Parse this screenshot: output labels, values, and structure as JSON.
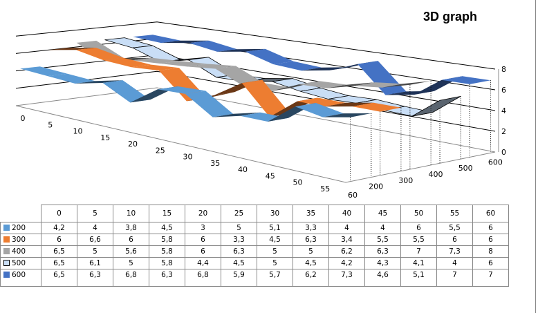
{
  "chart_data": {
    "type": "line",
    "subtype": "3d-ribbon",
    "title": "3D graph",
    "categories": [
      "0",
      "5",
      "10",
      "15",
      "20",
      "25",
      "30",
      "35",
      "40",
      "45",
      "50",
      "55",
      "60"
    ],
    "series": [
      {
        "name": "200",
        "color": "#5b9bd5",
        "values": [
          4.2,
          4,
          3.8,
          4.5,
          3,
          5,
          5.1,
          3.3,
          4,
          4,
          6,
          5.5,
          6
        ]
      },
      {
        "name": "300",
        "color": "#ed7d31",
        "values": [
          6,
          6.6,
          6,
          5.8,
          6,
          3.3,
          4.5,
          6.3,
          3.4,
          5.5,
          5.5,
          6,
          6
        ]
      },
      {
        "name": "400",
        "color": "#a5a5a5",
        "values": [
          6.5,
          5,
          5.6,
          5.8,
          6,
          6.3,
          5,
          5,
          6.2,
          6.3,
          7,
          7.3,
          8
        ]
      },
      {
        "name": "500",
        "color": "#c9def6",
        "values": [
          6.5,
          6.1,
          5,
          5.8,
          4.4,
          4.5,
          5,
          4.5,
          4.2,
          4.3,
          4.1,
          4,
          6
        ]
      },
      {
        "name": "600",
        "color": "#4472c4",
        "values": [
          6.5,
          6.3,
          6.8,
          6.3,
          6.8,
          5.9,
          5.7,
          6.2,
          7.3,
          4.6,
          5.1,
          7,
          7
        ]
      }
    ],
    "zlim": [
      0,
      8
    ],
    "zticks": [
      "0",
      "2",
      "4",
      "6",
      "8"
    ],
    "depth_labels": [
      "200",
      "300",
      "400",
      "500",
      "600"
    ],
    "grid": true,
    "data_table": true,
    "value_format": "decimal-comma"
  }
}
